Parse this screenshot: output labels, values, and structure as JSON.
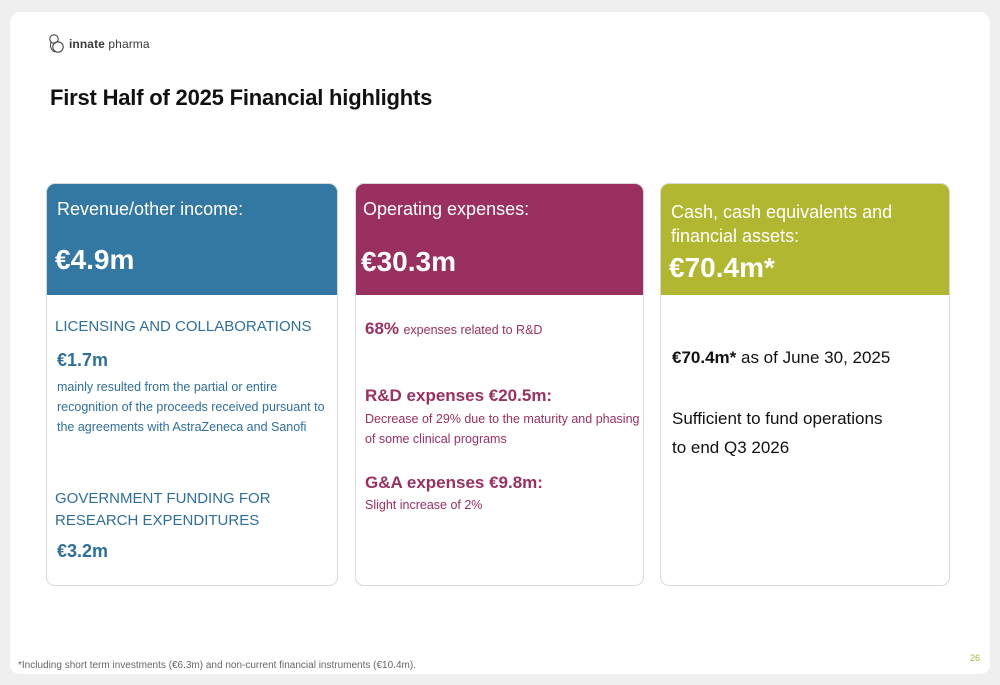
{
  "logo": {
    "text_bold": "innate",
    "text_light": "pharma"
  },
  "title": "First Half of 2025 Financial highlights",
  "cards": {
    "revenue": {
      "label": "Revenue/other income:",
      "amount": "€4.9m",
      "section1_heading": "LICENSING AND COLLABORATIONS",
      "section1_amount": "€1.7m",
      "section1_text_line1": "mainly resulted from  the partial or entire",
      "section1_text_line2": "recognition of the proceeds received pursuant to",
      "section1_text_line3": "the agreements with AstraZeneca and Sanofi",
      "section2_heading_line1": "GOVERNMENT FUNDING FOR",
      "section2_heading_line2": "RESEARCH EXPENDITURES",
      "section2_amount": "€3.2m"
    },
    "opex": {
      "label": "Operating expenses:",
      "amount": "€30.3m",
      "rd_share_value": "68%",
      "rd_share_text": "expenses related to R&D",
      "rd_heading": "R&D expenses €20.5m:",
      "rd_text_line1": "Decrease of 29% due to the maturity and phasing",
      "rd_text_line2": "of some clinical programs",
      "ga_heading": "G&A expenses €9.8m:",
      "ga_text": "Slight increase of 2%"
    },
    "cash": {
      "label_line1": "Cash, cash equivalents and",
      "label_line2": "financial assets:",
      "amount": "€70.4m*",
      "detail_value": "€70.4m*",
      "detail_text": " as of June 30, 2025",
      "runway_line1": "Sufficient to fund operations",
      "runway_line2": "to end Q3 2026"
    }
  },
  "footnote": "*Including short term investments (€6.3m) and non-current financial instruments (€10.4m).",
  "page_number": "26",
  "colors": {
    "blue": "#3377a3",
    "magenta": "#9a3060",
    "olive": "#b2b731"
  }
}
